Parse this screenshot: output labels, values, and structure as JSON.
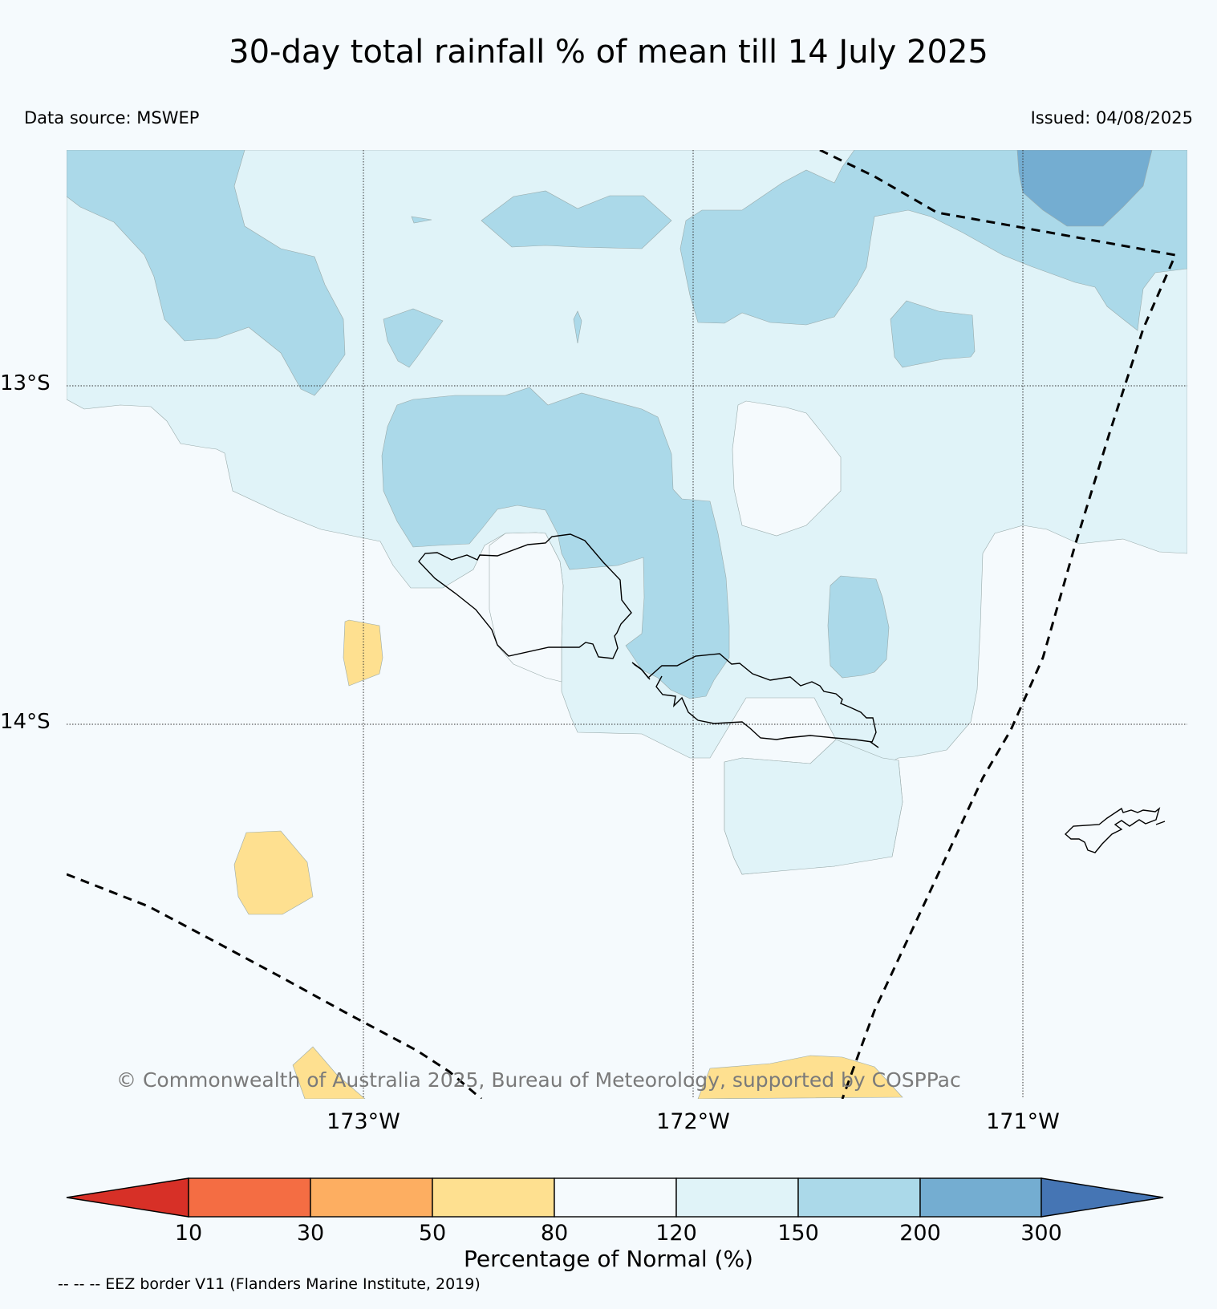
{
  "title": "30-day total rainfall % of mean till 14 July 2025",
  "data_source": "Data source: MSWEP",
  "issued": "Issued: 04/08/2025",
  "map": {
    "lat_labels": [
      "13°S",
      "14°S"
    ],
    "lon_labels": [
      "173°W",
      "172°W",
      "171°W"
    ],
    "copyright": "© Commonwealth of Australia 2025, Bureau of Meteorology, supported by COSPPac",
    "eez_note": "-- -- -- EEZ border V11 (Flanders Marine Institute, 2019)"
  },
  "colorbar": {
    "label": "Percentage of Normal (%)",
    "ticks": [
      "10",
      "30",
      "50",
      "80",
      "120",
      "150",
      "200",
      "300"
    ],
    "colors": {
      "below_10": "#d73027",
      "10_30": "#f46d43",
      "30_50": "#fdae61",
      "50_80": "#fee090",
      "80_120": "#f5fafd",
      "120_150": "#e0f3f8",
      "150_200": "#abd9e9",
      "200_300": "#74add1",
      "above_300": "#4575b4"
    }
  }
}
